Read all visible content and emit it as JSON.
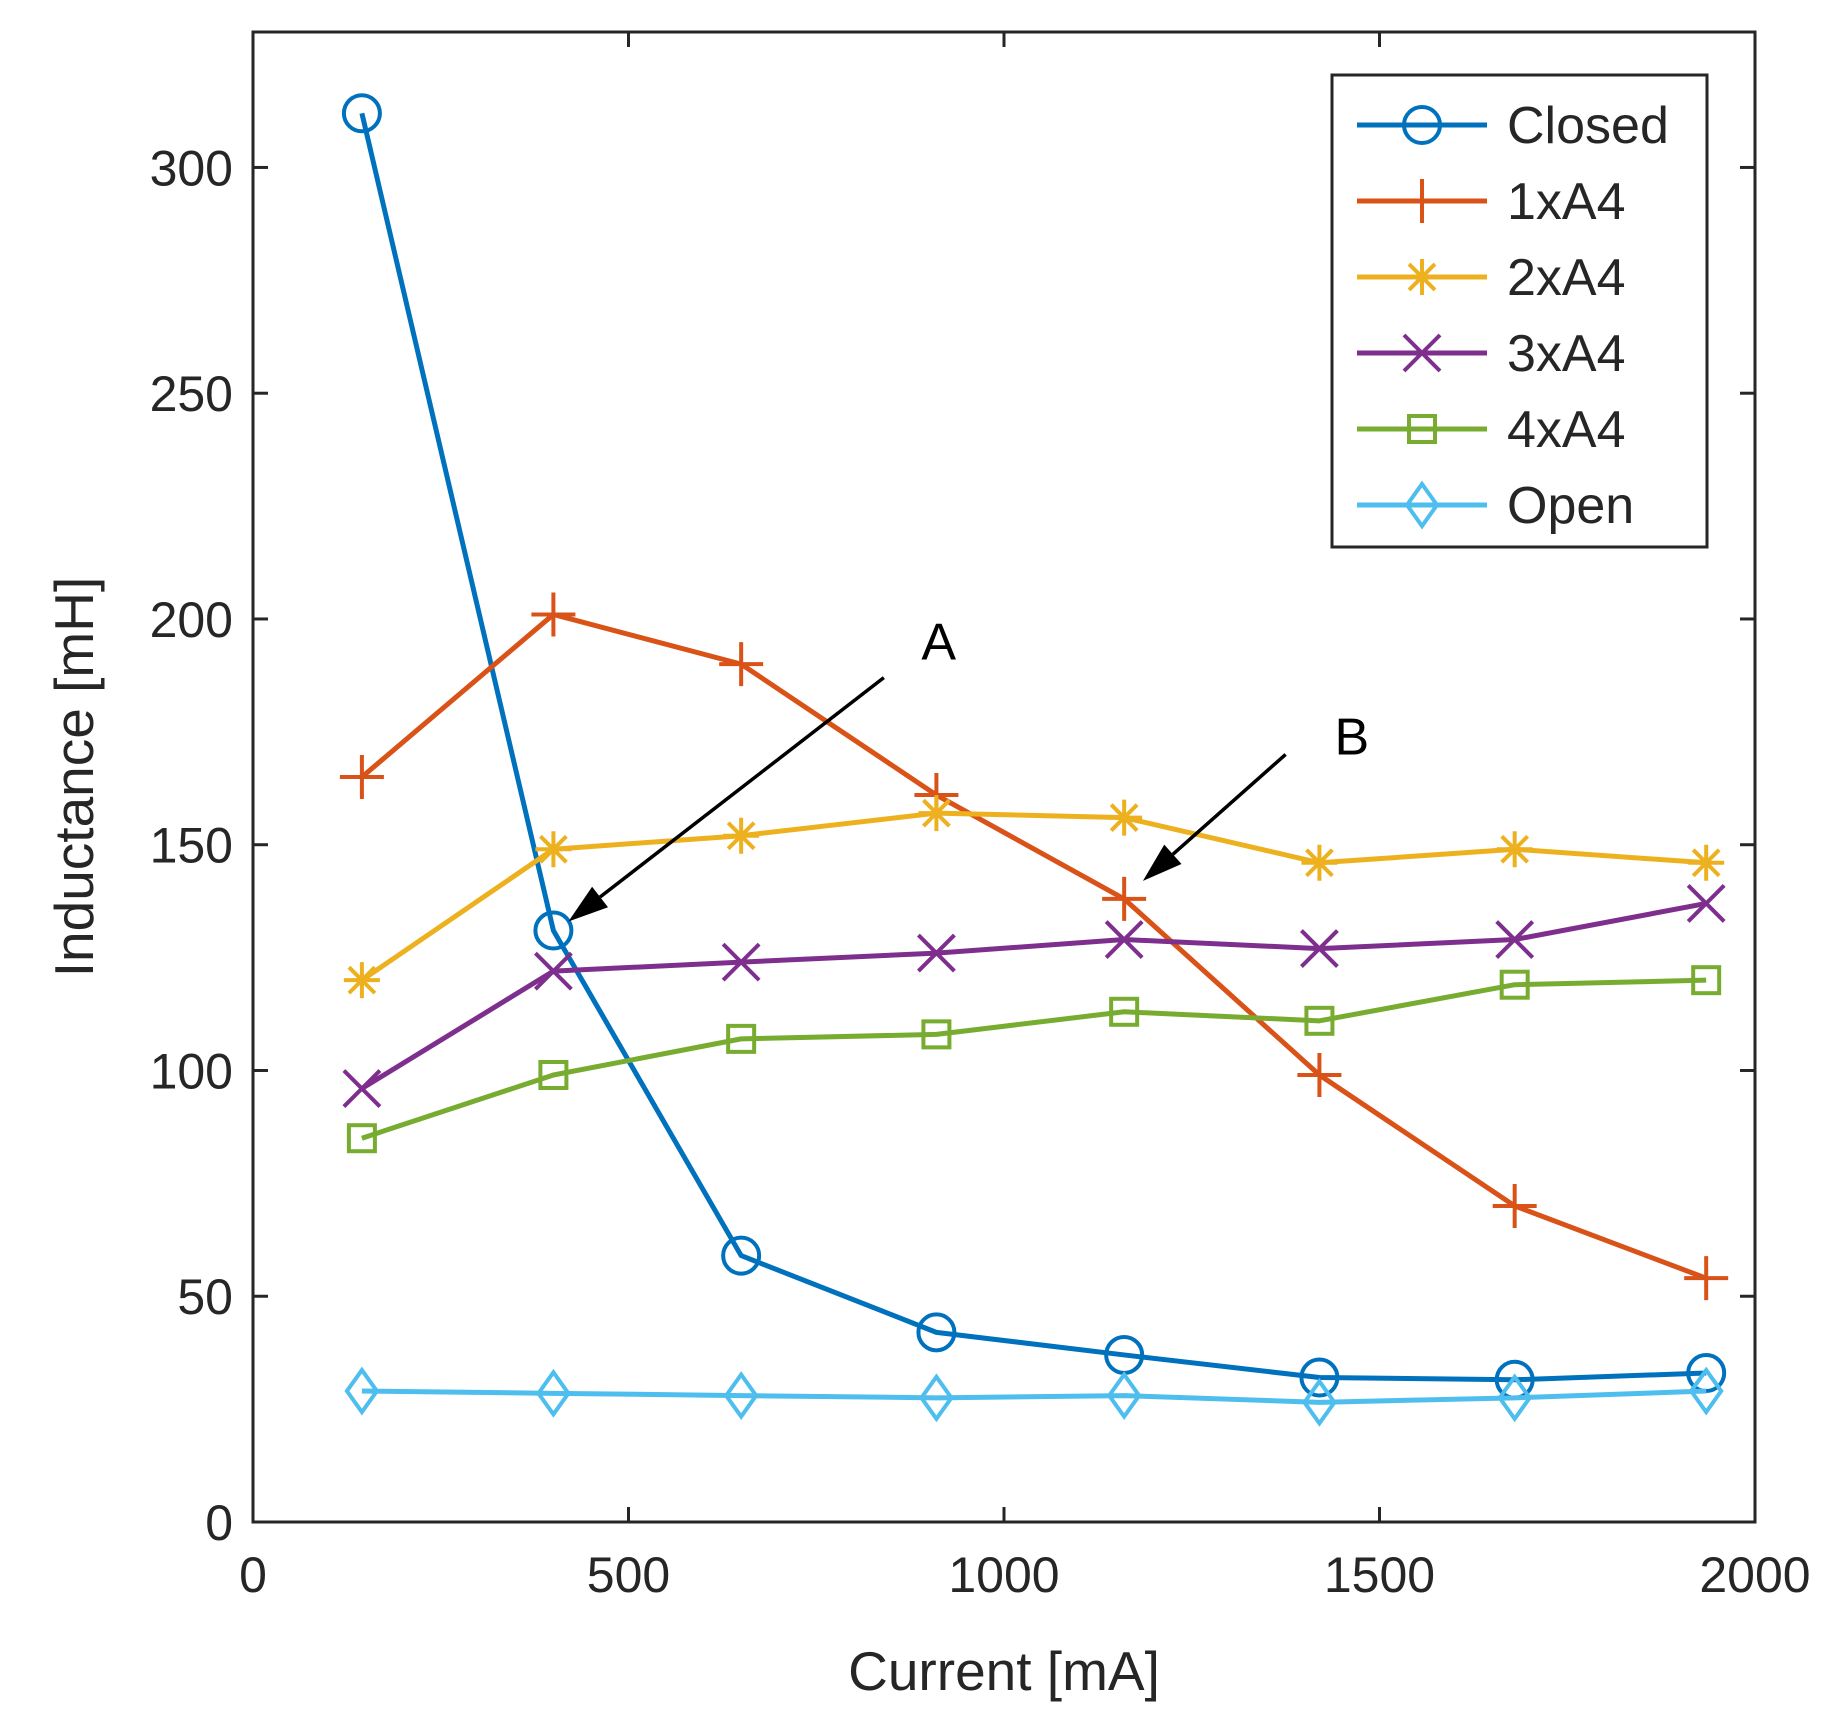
{
  "chart_data": {
    "type": "line",
    "xlabel": "Current [mA]",
    "ylabel": "Inductance [mH]",
    "xlim": [
      0,
      2000
    ],
    "ylim": [
      0,
      330
    ],
    "xticks": [
      0,
      500,
      1000,
      1500,
      2000
    ],
    "xtick_labels": [
      "0",
      "500",
      "1000",
      "1500",
      "2000"
    ],
    "yticks": [
      0,
      50,
      100,
      150,
      200,
      250,
      300
    ],
    "ytick_labels": [
      "0",
      "50",
      "100",
      "150",
      "200",
      "250",
      "300"
    ],
    "grid": false,
    "legend_position": "top-right",
    "x": [
      145,
      400,
      650,
      910,
      1160,
      1420,
      1680,
      1935
    ],
    "series": [
      {
        "name": "Closed",
        "marker": "circle",
        "color": "#0072BD",
        "values": [
          312,
          131,
          59,
          42,
          37,
          32,
          31.5,
          33
        ]
      },
      {
        "name": "1xA4",
        "marker": "plus",
        "color": "#D95319",
        "values": [
          165,
          201,
          190,
          161,
          138,
          99,
          70,
          54
        ]
      },
      {
        "name": "2xA4",
        "marker": "asterisk",
        "color": "#EDB120",
        "values": [
          120,
          149,
          152,
          157,
          156,
          146,
          149,
          146
        ]
      },
      {
        "name": "3xA4",
        "marker": "x",
        "color": "#7E2F8E",
        "values": [
          96,
          122,
          124,
          126,
          129,
          127,
          129,
          137
        ]
      },
      {
        "name": "4xA4",
        "marker": "square",
        "color": "#77AC30",
        "values": [
          85,
          99,
          107,
          108,
          113,
          111,
          119,
          120
        ]
      },
      {
        "name": "Open",
        "marker": "diamond",
        "color": "#4DBEEE",
        "values": [
          29,
          28.5,
          28,
          27.5,
          28,
          26.5,
          27.5,
          29
        ]
      }
    ],
    "annotations": [
      {
        "label": "A",
        "text_at": [
          890,
          195
        ],
        "arrow_from": [
          840,
          187
        ],
        "arrow_to": [
          420,
          133
        ]
      },
      {
        "label": "B",
        "text_at": [
          1440,
          174
        ],
        "arrow_from": [
          1375,
          170
        ],
        "arrow_to": [
          1185,
          142
        ]
      }
    ]
  }
}
